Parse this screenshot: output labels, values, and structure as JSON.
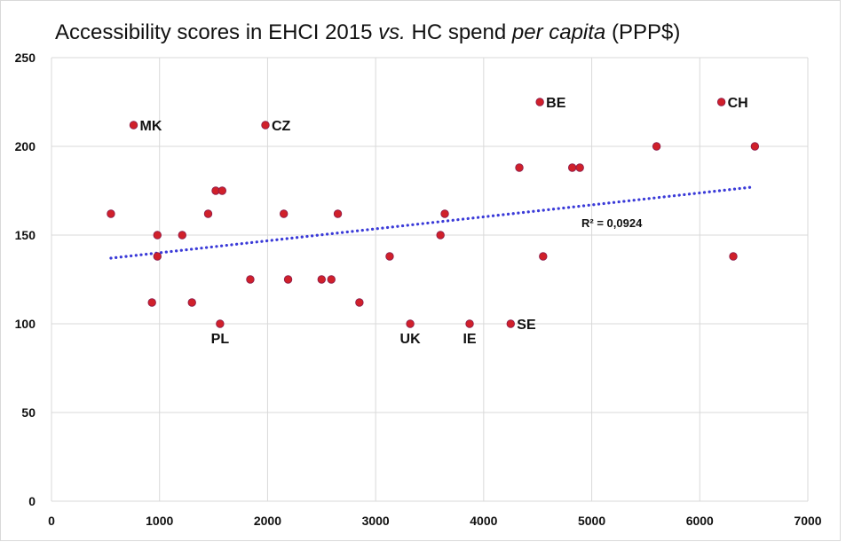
{
  "chart_data": {
    "type": "scatter",
    "title_parts": [
      {
        "text": "Accessibility scores in EHCI 2015 ",
        "italic": false
      },
      {
        "text": "vs.",
        "italic": true
      },
      {
        "text": " HC spend ",
        "italic": false
      },
      {
        "text": "per capita",
        "italic": true
      },
      {
        "text": " (PPP$)",
        "italic": false
      }
    ],
    "xlabel": "",
    "ylabel": "",
    "xlim": [
      0,
      7000
    ],
    "ylim": [
      0,
      250
    ],
    "x_ticks": [
      "0",
      "1000",
      "2000",
      "3000",
      "4000",
      "5000",
      "6000",
      "7000"
    ],
    "y_ticks": [
      "0",
      "50",
      "100",
      "150",
      "200",
      "250"
    ],
    "grid": true,
    "point_color": "#d0202a",
    "trend_color": "#3a3ad8",
    "trendline": {
      "x_start": 550,
      "y_start": 137,
      "x_end": 6480,
      "y_end": 177,
      "label": "R² = 0,0924",
      "label_x": 4100,
      "label_y": 157
    },
    "points": [
      {
        "x": 550,
        "y": 162
      },
      {
        "x": 760,
        "y": 212,
        "label": "MK"
      },
      {
        "x": 930,
        "y": 112
      },
      {
        "x": 980,
        "y": 150
      },
      {
        "x": 980,
        "y": 138
      },
      {
        "x": 1210,
        "y": 150
      },
      {
        "x": 1300,
        "y": 112
      },
      {
        "x": 1450,
        "y": 162
      },
      {
        "x": 1520,
        "y": 175
      },
      {
        "x": 1560,
        "y": 100,
        "label": "PL"
      },
      {
        "x": 1580,
        "y": 175
      },
      {
        "x": 1840,
        "y": 125
      },
      {
        "x": 1980,
        "y": 212,
        "label": "CZ"
      },
      {
        "x": 2150,
        "y": 162
      },
      {
        "x": 2190,
        "y": 125
      },
      {
        "x": 2500,
        "y": 125
      },
      {
        "x": 2590,
        "y": 125
      },
      {
        "x": 2650,
        "y": 162
      },
      {
        "x": 2850,
        "y": 112
      },
      {
        "x": 3130,
        "y": 138
      },
      {
        "x": 3320,
        "y": 100,
        "label": "UK"
      },
      {
        "x": 3600,
        "y": 150
      },
      {
        "x": 3640,
        "y": 162
      },
      {
        "x": 3870,
        "y": 100,
        "label": "IE"
      },
      {
        "x": 4250,
        "y": 100,
        "label": "SE"
      },
      {
        "x": 4330,
        "y": 188
      },
      {
        "x": 4520,
        "y": 225,
        "label": "BE"
      },
      {
        "x": 4550,
        "y": 138
      },
      {
        "x": 4820,
        "y": 188
      },
      {
        "x": 4890,
        "y": 188
      },
      {
        "x": 5600,
        "y": 200
      },
      {
        "x": 6200,
        "y": 225,
        "label": "CH"
      },
      {
        "x": 6310,
        "y": 138
      },
      {
        "x": 6510,
        "y": 200
      }
    ]
  }
}
